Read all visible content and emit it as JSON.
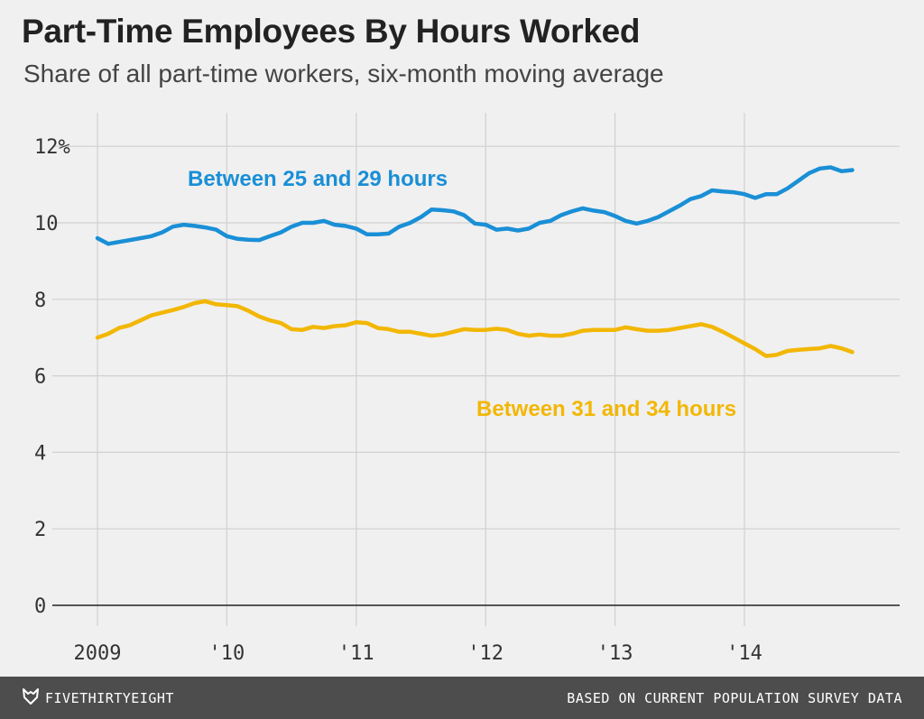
{
  "header": {
    "title": "Part-Time Employees By Hours Worked",
    "subtitle": "Share of all part-time workers, six-month moving average"
  },
  "footer": {
    "brand": "FIVETHIRTYEIGHT",
    "source": "BASED ON CURRENT POPULATION SURVEY DATA",
    "logo_icon": "fivethirtyeight-fox-icon"
  },
  "colors": {
    "background": "#f0f0f0",
    "grid": "#d0d0d0",
    "axis": "#222222",
    "series_25_29": "#1a8fd6",
    "series_31_34": "#f2b705",
    "footer_bg": "#4d4d4d"
  },
  "chart_data": {
    "type": "line",
    "title": "Part-Time Employees By Hours Worked",
    "subtitle": "Share of all part-time workers, six-month moving average",
    "xlabel": "",
    "ylabel": "",
    "ylim": [
      0,
      12.5
    ],
    "yticks": [
      0,
      2,
      4,
      6,
      8,
      10,
      12
    ],
    "ytick_labels": [
      "0",
      "2",
      "4",
      "6",
      "8",
      "10",
      "12%"
    ],
    "xlim": [
      2009.0,
      2015.05
    ],
    "xticks": [
      2009,
      2010,
      2011,
      2012,
      2013,
      2014
    ],
    "xtick_labels": [
      "2009",
      "'10",
      "'11",
      "'12",
      "'13",
      "'14"
    ],
    "grid": true,
    "series": [
      {
        "name": "Between 25 and 29 hours",
        "color": "#1a8fd6",
        "x": [
          2009.0,
          2009.083,
          2009.167,
          2009.25,
          2009.333,
          2009.417,
          2009.5,
          2009.583,
          2009.667,
          2009.75,
          2009.833,
          2009.917,
          2010.0,
          2010.083,
          2010.167,
          2010.25,
          2010.333,
          2010.417,
          2010.5,
          2010.583,
          2010.667,
          2010.75,
          2010.833,
          2010.917,
          2011.0,
          2011.083,
          2011.167,
          2011.25,
          2011.333,
          2011.417,
          2011.5,
          2011.583,
          2011.667,
          2011.75,
          2011.833,
          2011.917,
          2012.0,
          2012.083,
          2012.167,
          2012.25,
          2012.333,
          2012.417,
          2012.5,
          2012.583,
          2012.667,
          2012.75,
          2012.833,
          2012.917,
          2013.0,
          2013.083,
          2013.167,
          2013.25,
          2013.333,
          2013.417,
          2013.5,
          2013.583,
          2013.667,
          2013.75,
          2013.833,
          2013.917,
          2014.0,
          2014.083,
          2014.167,
          2014.25,
          2014.333,
          2014.417,
          2014.5,
          2014.583,
          2014.667,
          2014.75,
          2014.833
        ],
        "values": [
          9.6,
          9.45,
          9.5,
          9.55,
          9.6,
          9.65,
          9.75,
          9.9,
          9.95,
          9.92,
          9.88,
          9.82,
          9.65,
          9.58,
          9.56,
          9.55,
          9.65,
          9.75,
          9.9,
          10.0,
          10.0,
          10.05,
          9.95,
          9.92,
          9.85,
          9.7,
          9.7,
          9.72,
          9.9,
          10.0,
          10.15,
          10.35,
          10.33,
          10.3,
          10.2,
          9.98,
          9.95,
          9.82,
          9.85,
          9.8,
          9.85,
          10.0,
          10.05,
          10.2,
          10.3,
          10.38,
          10.32,
          10.28,
          10.18,
          10.05,
          9.98,
          10.05,
          10.15,
          10.3,
          10.45,
          10.62,
          10.7,
          10.85,
          10.82,
          10.8,
          10.75,
          10.65,
          10.75,
          10.75,
          10.9,
          11.1,
          11.3,
          11.42,
          11.45,
          11.35,
          11.38
        ]
      },
      {
        "name": "Between 31 and 34 hours",
        "color": "#f2b705",
        "x": [
          2009.0,
          2009.083,
          2009.167,
          2009.25,
          2009.333,
          2009.417,
          2009.5,
          2009.583,
          2009.667,
          2009.75,
          2009.833,
          2009.917,
          2010.0,
          2010.083,
          2010.167,
          2010.25,
          2010.333,
          2010.417,
          2010.5,
          2010.583,
          2010.667,
          2010.75,
          2010.833,
          2010.917,
          2011.0,
          2011.083,
          2011.167,
          2011.25,
          2011.333,
          2011.417,
          2011.5,
          2011.583,
          2011.667,
          2011.75,
          2011.833,
          2011.917,
          2012.0,
          2012.083,
          2012.167,
          2012.25,
          2012.333,
          2012.417,
          2012.5,
          2012.583,
          2012.667,
          2012.75,
          2012.833,
          2012.917,
          2013.0,
          2013.083,
          2013.167,
          2013.25,
          2013.333,
          2013.417,
          2013.5,
          2013.583,
          2013.667,
          2013.75,
          2013.833,
          2013.917,
          2014.0,
          2014.083,
          2014.167,
          2014.25,
          2014.333,
          2014.417,
          2014.5,
          2014.583,
          2014.667,
          2014.75,
          2014.833
        ],
        "values": [
          7.0,
          7.1,
          7.25,
          7.32,
          7.45,
          7.58,
          7.65,
          7.72,
          7.8,
          7.9,
          7.95,
          7.87,
          7.85,
          7.82,
          7.7,
          7.55,
          7.45,
          7.38,
          7.22,
          7.2,
          7.28,
          7.25,
          7.3,
          7.32,
          7.4,
          7.38,
          7.25,
          7.22,
          7.15,
          7.15,
          7.1,
          7.05,
          7.08,
          7.15,
          7.22,
          7.2,
          7.2,
          7.23,
          7.2,
          7.1,
          7.05,
          7.08,
          7.05,
          7.05,
          7.1,
          7.18,
          7.2,
          7.2,
          7.2,
          7.27,
          7.22,
          7.18,
          7.18,
          7.2,
          7.25,
          7.3,
          7.35,
          7.28,
          7.15,
          7.0,
          6.85,
          6.7,
          6.52,
          6.55,
          6.65,
          6.68,
          6.7,
          6.72,
          6.78,
          6.72,
          6.62
        ]
      }
    ],
    "annotations": [
      {
        "text": "Between 25 and 29 hours",
        "series": 0,
        "color": "#1a8fd6"
      },
      {
        "text": "Between 31 and 34 hours",
        "series": 1,
        "color": "#f2b705"
      }
    ]
  }
}
